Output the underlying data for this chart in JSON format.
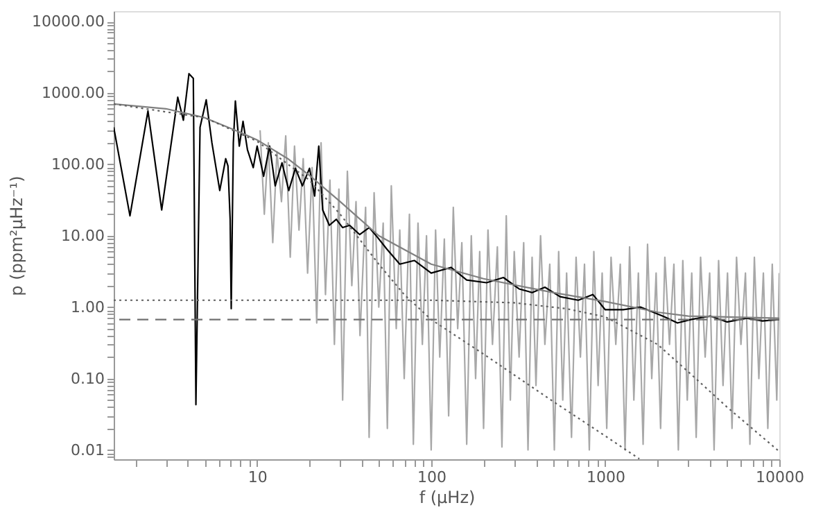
{
  "chart_data": {
    "type": "line",
    "xlabel": "f (μHz)",
    "ylabel": "p (ppm²μHz⁻¹)",
    "log": "xy",
    "marker": "none",
    "xlim": [
      1.5,
      10000
    ],
    "ylim": [
      0.0074,
      14000
    ],
    "xticks": [
      {
        "value": 2,
        "label": null
      },
      {
        "value": 3,
        "label": null
      },
      {
        "value": 4,
        "label": null
      },
      {
        "value": 5,
        "label": null
      },
      {
        "value": 6,
        "label": null
      },
      {
        "value": 7,
        "label": null
      },
      {
        "value": 8,
        "label": null
      },
      {
        "value": 9,
        "label": null
      },
      10,
      {
        "value": 20,
        "label": null
      },
      {
        "value": 30,
        "label": null
      },
      {
        "value": 40,
        "label": null
      },
      {
        "value": 50,
        "label": null
      },
      {
        "value": 60,
        "label": null
      },
      {
        "value": 70,
        "label": null
      },
      {
        "value": 80,
        "label": null
      },
      {
        "value": 90,
        "label": null
      },
      100,
      {
        "value": 200,
        "label": null
      },
      {
        "value": 300,
        "label": null
      },
      {
        "value": 400,
        "label": null
      },
      {
        "value": 500,
        "label": null
      },
      {
        "value": 600,
        "label": null
      },
      {
        "value": 700,
        "label": null
      },
      {
        "value": 800,
        "label": null
      },
      {
        "value": 900,
        "label": null
      },
      1000,
      {
        "value": 2000,
        "label": null
      },
      {
        "value": 3000,
        "label": null
      },
      {
        "value": 4000,
        "label": null
      },
      {
        "value": 5000,
        "label": null
      },
      {
        "value": 6000,
        "label": null
      },
      {
        "value": 7000,
        "label": null
      },
      {
        "value": 8000,
        "label": null
      },
      {
        "value": 9000,
        "label": null
      },
      10000
    ],
    "yticks": [
      {
        "value": 0.008,
        "label": null
      },
      {
        "value": 0.009,
        "label": null
      },
      {
        "value": 0.01,
        "label": "0.01"
      },
      {
        "value": 0.02,
        "label": null
      },
      {
        "value": 0.03,
        "label": null
      },
      {
        "value": 0.04,
        "label": null
      },
      {
        "value": 0.05,
        "label": null
      },
      {
        "value": 0.06,
        "label": null
      },
      {
        "value": 0.07,
        "label": null
      },
      {
        "value": 0.08,
        "label": null
      },
      {
        "value": 0.09,
        "label": null
      },
      {
        "value": 0.1,
        "label": "0.10"
      },
      {
        "value": 0.2,
        "label": null
      },
      {
        "value": 0.3,
        "label": null
      },
      {
        "value": 0.4,
        "label": null
      },
      {
        "value": 0.5,
        "label": null
      },
      {
        "value": 0.6,
        "label": null
      },
      {
        "value": 0.7,
        "label": null
      },
      {
        "value": 0.8,
        "label": null
      },
      {
        "value": 0.9,
        "label": null
      },
      {
        "value": 1,
        "label": "1.00"
      },
      {
        "value": 2,
        "label": null
      },
      {
        "value": 3,
        "label": null
      },
      {
        "value": 4,
        "label": null
      },
      {
        "value": 5,
        "label": null
      },
      {
        "value": 6,
        "label": null
      },
      {
        "value": 7,
        "label": null
      },
      {
        "value": 8,
        "label": null
      },
      {
        "value": 9,
        "label": null
      },
      {
        "value": 10,
        "label": "10.00"
      },
      {
        "value": 20,
        "label": null
      },
      {
        "value": 30,
        "label": null
      },
      {
        "value": 40,
        "label": null
      },
      {
        "value": 50,
        "label": null
      },
      {
        "value": 60,
        "label": null
      },
      {
        "value": 70,
        "label": null
      },
      {
        "value": 80,
        "label": null
      },
      {
        "value": 90,
        "label": null
      },
      {
        "value": 100,
        "label": "100.00"
      },
      {
        "value": 200,
        "label": null
      },
      {
        "value": 300,
        "label": null
      },
      {
        "value": 400,
        "label": null
      },
      {
        "value": 500,
        "label": null
      },
      {
        "value": 600,
        "label": null
      },
      {
        "value": 700,
        "label": null
      },
      {
        "value": 800,
        "label": null
      },
      {
        "value": 900,
        "label": null
      },
      {
        "value": 1000,
        "label": "1000.00"
      },
      {
        "value": 2000,
        "label": null
      },
      {
        "value": 3000,
        "label": null
      },
      {
        "value": 4000,
        "label": null
      },
      {
        "value": 5000,
        "label": null
      },
      {
        "value": 6000,
        "label": null
      },
      {
        "value": 7000,
        "label": null
      },
      {
        "value": 8000,
        "label": null
      },
      {
        "value": 9000,
        "label": null
      },
      {
        "value": 10000,
        "label": "10000.00"
      }
    ],
    "ref_lines": [
      {
        "axis": "y",
        "value": 0.67,
        "label": null,
        "color": "#707070",
        "line_style": "dashed"
      }
    ],
    "series": [
      {
        "color": "#a8a8a8",
        "line_style": "solid",
        "x": [
          10.4,
          11,
          11.6,
          12.3,
          13,
          13.8,
          14.6,
          15.5,
          16.4,
          17.4,
          18.4,
          19.5,
          20.7,
          22,
          23.3,
          24.7,
          26.2,
          27.8,
          29.5,
          31,
          33,
          35,
          37,
          39,
          42,
          44,
          47,
          50,
          53,
          56,
          59,
          63,
          66,
          70,
          75,
          79,
          84,
          89,
          94,
          100,
          106,
          112,
          119,
          126,
          134,
          142,
          150,
          160,
          170,
          180,
          190,
          200,
          212,
          225,
          240,
          255,
          270,
          285,
          300,
          320,
          340,
          360,
          380,
          400,
          425,
          450,
          480,
          510,
          540,
          570,
          600,
          640,
          680,
          720,
          760,
          810,
          860,
          910,
          960,
          1020,
          1080,
          1150,
          1220,
          1300,
          1380,
          1460,
          1550,
          1650,
          1750,
          1850,
          1960,
          2080,
          2200,
          2340,
          2480,
          2630,
          2790,
          2960,
          3140,
          3330,
          3530,
          3750,
          3980,
          4220,
          4480,
          4750,
          5040,
          5350,
          5680,
          6020,
          6390,
          6780,
          7190,
          7630,
          8100,
          8590,
          9110,
          9670,
          10000
        ],
        "values": [
          300,
          20,
          200,
          8,
          150,
          30,
          250,
          5,
          180,
          12,
          120,
          3,
          90,
          0.6,
          200,
          1.5,
          60,
          0.3,
          45,
          0.05,
          80,
          2,
          30,
          0.4,
          25,
          0.015,
          40,
          1,
          15,
          0.02,
          50,
          0.5,
          12,
          0.1,
          20,
          0.012,
          15,
          0.3,
          10,
          0.01,
          12,
          0.2,
          9,
          0.03,
          25,
          0.5,
          8,
          0.012,
          10,
          0.1,
          6,
          0.02,
          12,
          0.3,
          7,
          0.011,
          19,
          0.05,
          6,
          0.2,
          8,
          0.01,
          5,
          0.08,
          10,
          0.3,
          4,
          0.01,
          6,
          0.05,
          3,
          0.015,
          5,
          0.2,
          4,
          0.01,
          6,
          0.08,
          3,
          0.02,
          5,
          0.3,
          4,
          0.01,
          7,
          0.05,
          3,
          0.012,
          7.6,
          0.1,
          3,
          0.02,
          5,
          0.3,
          4,
          0.01,
          4.5,
          0.05,
          3,
          0.015,
          5,
          0.2,
          3,
          0.01,
          4.5,
          0.08,
          3,
          0.02,
          5,
          0.3,
          3,
          0.012,
          5,
          0.1,
          3,
          0.02,
          4,
          0.05,
          3
        ]
      },
      {
        "color": "#000000",
        "line_style": "solid",
        "x": [
          1.5,
          1.86,
          2.36,
          2.83,
          3.5,
          3.77,
          4.06,
          4.3,
          4.45,
          4.7,
          5.1,
          5.5,
          6.1,
          6.6,
          6.8,
          7.0,
          7.1,
          7.3,
          7.5,
          7.9,
          8.3,
          8.8,
          9.5,
          10,
          10.9,
          11.8,
          12.7,
          13.9,
          15.2,
          16.6,
          18.2,
          20,
          21.4,
          22.6,
          23.8,
          26,
          28.5,
          31,
          34,
          38.8,
          44,
          49,
          55.6,
          66,
          80,
          100,
          130,
          160,
          208,
          260,
          320,
          380,
          450,
          550,
          700,
          850,
          1000,
          1270,
          1600,
          2170,
          2600,
          3100,
          4000,
          5000,
          6500,
          8000,
          10000
        ],
        "values": [
          330,
          19,
          560,
          23,
          870,
          415,
          1860,
          1600,
          0.043,
          330,
          800,
          200,
          43,
          120,
          95,
          17,
          0.95,
          200,
          770,
          180,
          400,
          160,
          90,
          180,
          68,
          180,
          50,
          105,
          43,
          88,
          50,
          88,
          36,
          180,
          23,
          14,
          17,
          13,
          14,
          10.4,
          13,
          9.6,
          6.5,
          4.0,
          4.5,
          3.0,
          3.6,
          2.4,
          2.2,
          2.6,
          1.8,
          1.6,
          1.9,
          1.4,
          1.25,
          1.5,
          0.92,
          0.92,
          1.0,
          0.74,
          0.6,
          0.67,
          0.75,
          0.62,
          0.7,
          0.64,
          0.67
        ]
      },
      {
        "color": "#808080",
        "line_style": "solid",
        "x": [
          1.5,
          3,
          5,
          8,
          10,
          15,
          20,
          30,
          50,
          100,
          200,
          500,
          1000,
          2000,
          3000,
          10000
        ],
        "values": [
          700,
          600,
          450,
          280,
          220,
          120,
          70,
          30,
          10,
          4,
          2.5,
          1.6,
          1.2,
          0.85,
          0.75,
          0.7
        ]
      },
      {
        "color": "#606060",
        "line_style": "dotted",
        "x": [
          1.5,
          5,
          10,
          20,
          30,
          50,
          70,
          100,
          200,
          500,
          1000,
          1570
        ],
        "values": [
          700,
          450,
          210,
          60,
          20,
          4,
          1.5,
          0.67,
          0.22,
          0.048,
          0.0157,
          0.0075
        ]
      },
      {
        "color": "#606060",
        "line_style": "dotted",
        "x": [
          1.5,
          100,
          300,
          600,
          1000,
          2000,
          3120,
          5000,
          10000
        ],
        "values": [
          1.25,
          1.25,
          1.15,
          0.95,
          0.73,
          0.3,
          0.114,
          0.04,
          0.0095
        ]
      }
    ]
  }
}
